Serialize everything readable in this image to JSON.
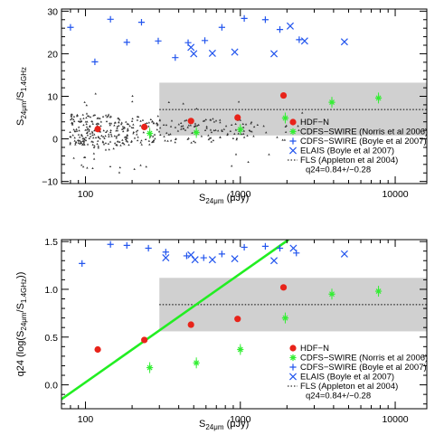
{
  "colors": {
    "hdfn": "#e8231a",
    "norris": "#33ee33",
    "boyle_cdfs": "#2255ee",
    "elais": "#2255ee",
    "fls_band": "#d0d0d0",
    "scatter": "#333333",
    "fit_line": "#22ee22"
  },
  "chart_data": [
    {
      "type": "scatter",
      "xscale": "log",
      "xlim": [
        70,
        16000
      ],
      "ylim": [
        -10.5,
        30.5
      ],
      "xlabel": "S24μm (μJy)",
      "ylabel": "S24μm/S1.4GHz",
      "xtick_labels": [
        "100",
        "1000",
        "10000"
      ],
      "xticks": [
        100,
        1000,
        10000
      ],
      "yticks": [
        -10,
        0,
        10,
        20,
        30
      ],
      "ytick_labels": [
        "−10",
        "0",
        "10",
        "20",
        "30"
      ],
      "legend_position": "bottom-right",
      "series": [
        {
          "name": "HDF−N",
          "marker": "filled-circle",
          "x": [
            120,
            240,
            480,
            960,
            1900
          ],
          "y": [
            2.3,
            2.8,
            4.2,
            5.0,
            10.2
          ]
        },
        {
          "name": "CDFS−SWIRE (Norris et al 2006)",
          "marker": "asterisk",
          "x": [
            260,
            520,
            1000,
            1950,
            3900,
            7800
          ],
          "y": [
            1.3,
            1.5,
            2.2,
            4.9,
            8.6,
            9.6
          ]
        },
        {
          "name": "CDFS−SWIRE (Boyle et al 2007)",
          "marker": "plus",
          "x": [
            80,
            115,
            145,
            185,
            230,
            295,
            380,
            460,
            590,
            760,
            1060,
            1450,
            1800,
            2400
          ],
          "y": [
            26.2,
            18.1,
            28.1,
            22.7,
            27.4,
            23.0,
            19.1,
            22.6,
            23.1,
            26.2,
            28.3,
            28.0,
            25.7,
            23.3
          ]
        },
        {
          "name": "ELAIS (Boyle et al 2007)",
          "marker": "cross",
          "x": [
            480,
            500,
            660,
            920,
            1650,
            2100,
            2600,
            4700
          ],
          "y": [
            21.5,
            20.0,
            20.1,
            20.4,
            20.0,
            26.5,
            23.0,
            22.8
          ]
        },
        {
          "name": "FLS (Appleton et al 2004)",
          "marker": "dotted-line-band",
          "x_range": [
            300,
            16000
          ],
          "y_line": 6.9,
          "band": [
            0.8,
            13.2
          ]
        }
      ],
      "annotation": "q24=0.84+/−0.28"
    },
    {
      "type": "scatter",
      "xscale": "log",
      "xlim": [
        70,
        16000
      ],
      "ylim": [
        -0.25,
        1.52
      ],
      "xlabel": "S24μm (μJy)",
      "ylabel": "q24 (log(S24μm/S1.4GHz))",
      "xtick_labels": [
        "100",
        "1000",
        "10000"
      ],
      "xticks": [
        100,
        1000,
        10000
      ],
      "yticks": [
        0.0,
        0.5,
        1.0,
        1.5
      ],
      "ytick_labels": [
        "0.0",
        "0.5",
        "1.0",
        "1.5"
      ],
      "legend_position": "bottom-right",
      "series": [
        {
          "name": "HDF−N",
          "marker": "filled-circle",
          "x": [
            120,
            240,
            480,
            960,
            1900
          ],
          "y": [
            0.37,
            0.47,
            0.63,
            0.69,
            1.02
          ]
        },
        {
          "name": "CDFS−SWIRE (Norris et al 2006)",
          "marker": "asterisk",
          "x": [
            260,
            520,
            1000,
            1950,
            3900,
            7800
          ],
          "y": [
            0.18,
            0.23,
            0.37,
            0.7,
            0.95,
            0.98
          ]
        },
        {
          "name": "CDFS−SWIRE (Boyle et al 2007)",
          "marker": "plus",
          "x": [
            95,
            145,
            185,
            255,
            330,
            450,
            580,
            760,
            1060,
            1450,
            1800,
            2300
          ],
          "y": [
            1.27,
            1.47,
            1.46,
            1.43,
            1.39,
            1.35,
            1.33,
            1.37,
            1.44,
            1.45,
            1.43,
            1.38
          ]
        },
        {
          "name": "ELAIS (Boyle et al 2007)",
          "marker": "cross",
          "x": [
            330,
            480,
            510,
            660,
            920,
            1650,
            2200,
            4700
          ],
          "y": [
            1.33,
            1.36,
            1.31,
            1.31,
            1.32,
            1.3,
            1.43,
            1.37
          ]
        },
        {
          "name": "FLS (Appleton et al 2004)",
          "marker": "dotted-line-band",
          "x_range": [
            300,
            16000
          ],
          "y_line": 0.84,
          "band": [
            0.56,
            1.12
          ]
        },
        {
          "marker": "line",
          "x": [
            70,
            2050
          ],
          "y": [
            -0.15,
            1.52
          ]
        }
      ],
      "annotation": "q24=0.84+/−0.28"
    }
  ],
  "legend_labels": [
    "HDF−N",
    "CDFS−SWIRE (Norris et al 2006)",
    "CDFS−SWIRE (Boyle et al 2007)",
    "ELAIS (Boyle et al 2007)",
    "FLS (Appleton et al 2004)",
    "q24=0.84+/−0.28"
  ]
}
